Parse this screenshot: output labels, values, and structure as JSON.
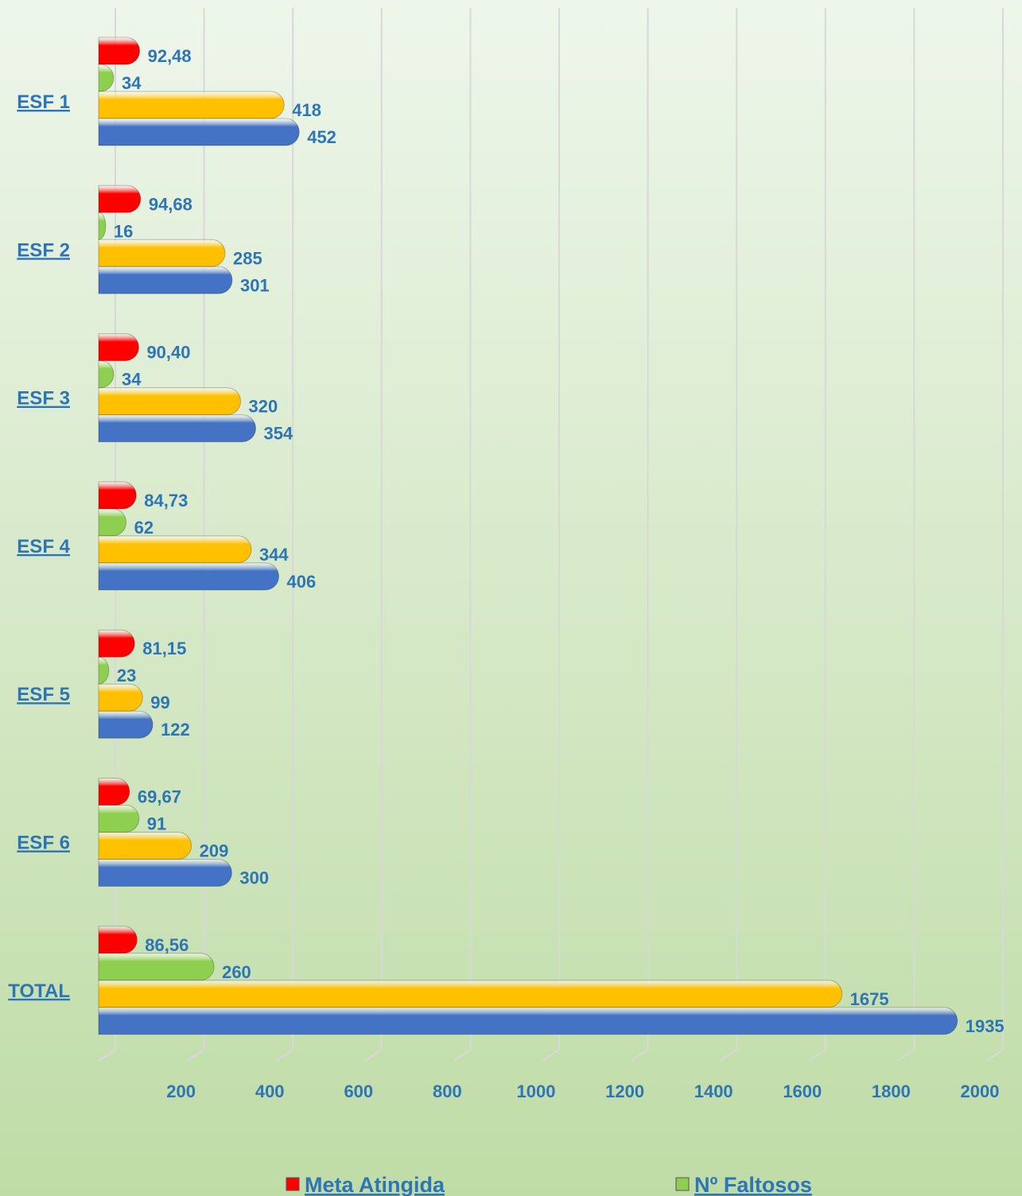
{
  "chart_data": {
    "type": "bar",
    "orientation": "horizontal",
    "categories": [
      "ESF 1",
      "ESF 2",
      "ESF 3",
      "ESF 4",
      "ESF 5",
      "ESF 6",
      "TOTAL"
    ],
    "series": [
      {
        "name": "Meta Atingida",
        "color": "#ff0000",
        "values": [
          92.48,
          94.68,
          90.4,
          84.73,
          81.15,
          69.67,
          86.56
        ],
        "value_labels": [
          "92,48",
          "94,68",
          "90,40",
          "84,73",
          "81,15",
          "69,67",
          "86,56"
        ]
      },
      {
        "name": "Nº Faltosos",
        "color": "#8fcf50",
        "values": [
          34,
          16,
          34,
          62,
          23,
          91,
          260
        ]
      },
      {
        "color": "#ffc000",
        "values": [
          418,
          285,
          320,
          344,
          99,
          209,
          1675
        ]
      },
      {
        "color": "#4472c4",
        "values": [
          452,
          301,
          354,
          406,
          122,
          300,
          1935
        ]
      }
    ],
    "xlim": [
      0,
      2000
    ],
    "xticks": [
      200,
      400,
      600,
      800,
      1000,
      1200,
      1400,
      1600,
      1800,
      2000
    ],
    "grid": true
  }
}
